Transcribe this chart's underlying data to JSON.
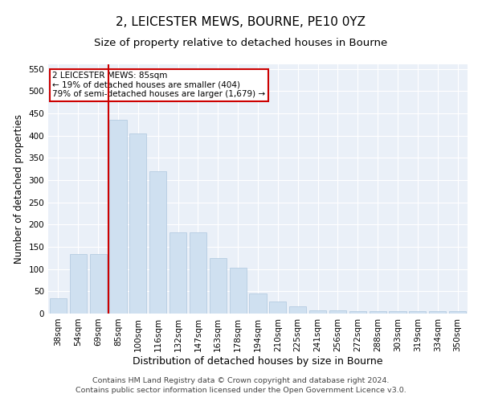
{
  "title": "2, LEICESTER MEWS, BOURNE, PE10 0YZ",
  "subtitle": "Size of property relative to detached houses in Bourne",
  "xlabel": "Distribution of detached houses by size in Bourne",
  "ylabel": "Number of detached properties",
  "categories": [
    "38sqm",
    "54sqm",
    "69sqm",
    "85sqm",
    "100sqm",
    "116sqm",
    "132sqm",
    "147sqm",
    "163sqm",
    "178sqm",
    "194sqm",
    "210sqm",
    "225sqm",
    "241sqm",
    "256sqm",
    "272sqm",
    "288sqm",
    "303sqm",
    "319sqm",
    "334sqm",
    "350sqm"
  ],
  "values": [
    35,
    133,
    133,
    435,
    405,
    320,
    182,
    182,
    125,
    103,
    45,
    28,
    17,
    7,
    8,
    5,
    5,
    5,
    5,
    5,
    5
  ],
  "bar_color": "#cfe0f0",
  "bar_edgecolor": "#aec6de",
  "vline_color": "#cc0000",
  "annotation_text": "2 LEICESTER MEWS: 85sqm\n← 19% of detached houses are smaller (404)\n79% of semi-detached houses are larger (1,679) →",
  "annotation_box_color": "#ffffff",
  "annotation_box_edgecolor": "#cc0000",
  "ylim": [
    0,
    560
  ],
  "yticks": [
    0,
    50,
    100,
    150,
    200,
    250,
    300,
    350,
    400,
    450,
    500,
    550
  ],
  "background_color": "#eaf0f8",
  "footer_line1": "Contains HM Land Registry data © Crown copyright and database right 2024.",
  "footer_line2": "Contains public sector information licensed under the Open Government Licence v3.0.",
  "title_fontsize": 11,
  "subtitle_fontsize": 9.5,
  "xlabel_fontsize": 9,
  "ylabel_fontsize": 8.5,
  "tick_fontsize": 7.5,
  "footer_fontsize": 6.8
}
